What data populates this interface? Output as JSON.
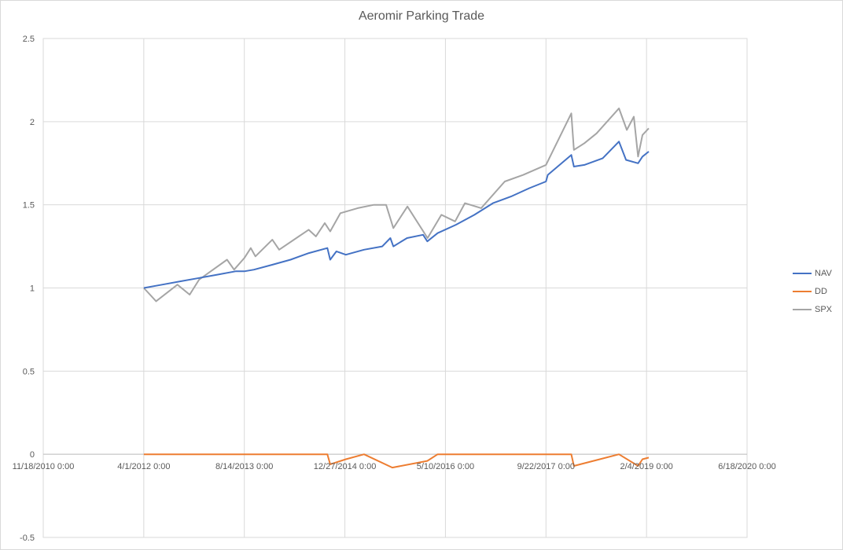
{
  "chart_data": {
    "type": "line",
    "title": "Aeromir Parking Trade",
    "xlabel": "",
    "ylabel": "",
    "x_tick_labels": [
      "11/18/2010 0:00",
      "4/1/2012 0:00",
      "8/14/2013 0:00",
      "12/27/2014 0:00",
      "5/10/2016 0:00",
      "9/22/2017 0:00",
      "2/4/2019 0:00",
      "6/18/2020 0:00"
    ],
    "y_tick_labels": [
      "2.5",
      "2",
      "1.5",
      "1",
      "0.5",
      "0",
      "-0.5"
    ],
    "ylim": [
      -0.5,
      2.5
    ],
    "xlim": [
      "2010-11-18",
      "2020-06-18"
    ],
    "grid": true,
    "legend_position": "right",
    "series": [
      {
        "name": "NAV",
        "color": "#4472C4",
        "points": [
          [
            "2012-04-01",
            1.0
          ],
          [
            "2012-07-01",
            1.02
          ],
          [
            "2012-10-01",
            1.04
          ],
          [
            "2013-01-01",
            1.06
          ],
          [
            "2013-04-01",
            1.08
          ],
          [
            "2013-07-01",
            1.1
          ],
          [
            "2013-08-14",
            1.1
          ],
          [
            "2013-10-01",
            1.11
          ],
          [
            "2014-01-01",
            1.14
          ],
          [
            "2014-04-01",
            1.17
          ],
          [
            "2014-07-01",
            1.21
          ],
          [
            "2014-10-01",
            1.24
          ],
          [
            "2014-10-15",
            1.17
          ],
          [
            "2014-11-15",
            1.22
          ],
          [
            "2015-01-01",
            1.2
          ],
          [
            "2015-04-01",
            1.23
          ],
          [
            "2015-07-01",
            1.25
          ],
          [
            "2015-08-10",
            1.3
          ],
          [
            "2015-08-25",
            1.25
          ],
          [
            "2015-11-01",
            1.3
          ],
          [
            "2016-01-20",
            1.32
          ],
          [
            "2016-02-10",
            1.28
          ],
          [
            "2016-04-01",
            1.33
          ],
          [
            "2016-07-01",
            1.38
          ],
          [
            "2016-10-01",
            1.44
          ],
          [
            "2017-01-01",
            1.51
          ],
          [
            "2017-04-01",
            1.55
          ],
          [
            "2017-07-01",
            1.6
          ],
          [
            "2017-09-22",
            1.64
          ],
          [
            "2017-10-01",
            1.68
          ],
          [
            "2018-01-26",
            1.8
          ],
          [
            "2018-02-08",
            1.73
          ],
          [
            "2018-04-01",
            1.74
          ],
          [
            "2018-07-01",
            1.78
          ],
          [
            "2018-09-20",
            1.88
          ],
          [
            "2018-10-25",
            1.77
          ],
          [
            "2018-12-24",
            1.75
          ],
          [
            "2019-01-15",
            1.79
          ],
          [
            "2019-02-15",
            1.82
          ]
        ]
      },
      {
        "name": "DD",
        "color": "#ED7D31",
        "points": [
          [
            "2012-04-01",
            0.0
          ],
          [
            "2014-10-01",
            0.0
          ],
          [
            "2014-10-15",
            -0.06
          ],
          [
            "2015-01-01",
            -0.03
          ],
          [
            "2015-04-01",
            0.0
          ],
          [
            "2015-08-20",
            -0.08
          ],
          [
            "2016-02-10",
            -0.04
          ],
          [
            "2016-04-01",
            0.0
          ],
          [
            "2018-01-26",
            0.0
          ],
          [
            "2018-02-08",
            -0.07
          ],
          [
            "2018-09-20",
            0.0
          ],
          [
            "2018-12-24",
            -0.07
          ],
          [
            "2019-01-15",
            -0.03
          ],
          [
            "2019-02-15",
            -0.02
          ]
        ]
      },
      {
        "name": "SPX",
        "color": "#A5A5A5",
        "points": [
          [
            "2012-04-01",
            1.0
          ],
          [
            "2012-06-01",
            0.92
          ],
          [
            "2012-09-15",
            1.02
          ],
          [
            "2012-11-15",
            0.96
          ],
          [
            "2013-01-01",
            1.05
          ],
          [
            "2013-05-20",
            1.17
          ],
          [
            "2013-06-24",
            1.11
          ],
          [
            "2013-08-14",
            1.18
          ],
          [
            "2013-09-15",
            1.24
          ],
          [
            "2013-10-08",
            1.19
          ],
          [
            "2013-12-31",
            1.29
          ],
          [
            "2014-02-03",
            1.23
          ],
          [
            "2014-06-30",
            1.35
          ],
          [
            "2014-08-05",
            1.31
          ],
          [
            "2014-09-18",
            1.39
          ],
          [
            "2014-10-15",
            1.34
          ],
          [
            "2014-12-05",
            1.45
          ],
          [
            "2015-03-01",
            1.48
          ],
          [
            "2015-05-20",
            1.5
          ],
          [
            "2015-07-20",
            1.5
          ],
          [
            "2015-08-25",
            1.36
          ],
          [
            "2015-11-03",
            1.49
          ],
          [
            "2016-02-11",
            1.3
          ],
          [
            "2016-04-20",
            1.44
          ],
          [
            "2016-06-27",
            1.4
          ],
          [
            "2016-08-15",
            1.51
          ],
          [
            "2016-11-04",
            1.48
          ],
          [
            "2017-03-01",
            1.64
          ],
          [
            "2017-06-01",
            1.68
          ],
          [
            "2017-09-22",
            1.74
          ],
          [
            "2018-01-26",
            2.05
          ],
          [
            "2018-02-08",
            1.83
          ],
          [
            "2018-04-01",
            1.87
          ],
          [
            "2018-06-01",
            1.93
          ],
          [
            "2018-09-20",
            2.08
          ],
          [
            "2018-10-29",
            1.95
          ],
          [
            "2018-12-03",
            2.03
          ],
          [
            "2018-12-24",
            1.79
          ],
          [
            "2019-01-15",
            1.92
          ],
          [
            "2019-02-15",
            1.96
          ]
        ]
      }
    ]
  }
}
